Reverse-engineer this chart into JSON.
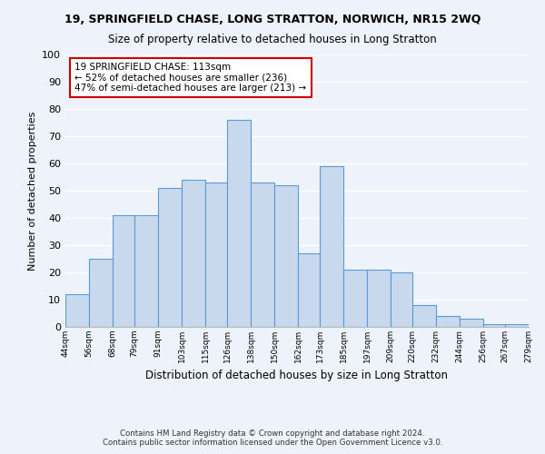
{
  "title": "19, SPRINGFIELD CHASE, LONG STRATTON, NORWICH, NR15 2WQ",
  "subtitle": "Size of property relative to detached houses in Long Stratton",
  "xlabel": "Distribution of detached houses by size in Long Stratton",
  "ylabel": "Number of detached properties",
  "bin_edges": [
    44,
    56,
    68,
    79,
    91,
    103,
    115,
    126,
    138,
    150,
    162,
    173,
    185,
    197,
    209,
    220,
    232,
    244,
    256,
    267,
    279
  ],
  "bar_heights": [
    12,
    25,
    41,
    41,
    51,
    54,
    53,
    76,
    53,
    52,
    27,
    59,
    21,
    21,
    20,
    8,
    4,
    3,
    1,
    1
  ],
  "annotation_text": "19 SPRINGFIELD CHASE: 113sqm\n← 52% of detached houses are smaller (236)\n47% of semi-detached houses are larger (213) →",
  "footer_line1": "Contains HM Land Registry data © Crown copyright and database right 2024.",
  "footer_line2": "Contains public sector information licensed under the Open Government Licence v3.0.",
  "bar_color": "#c8d9ed",
  "bar_edge_color": "#5b9bd5",
  "background_color": "#eef2fa",
  "grid_color": "#ffffff",
  "ylim": [
    0,
    100
  ],
  "yticks": [
    0,
    10,
    20,
    30,
    40,
    50,
    60,
    70,
    80,
    90,
    100
  ]
}
